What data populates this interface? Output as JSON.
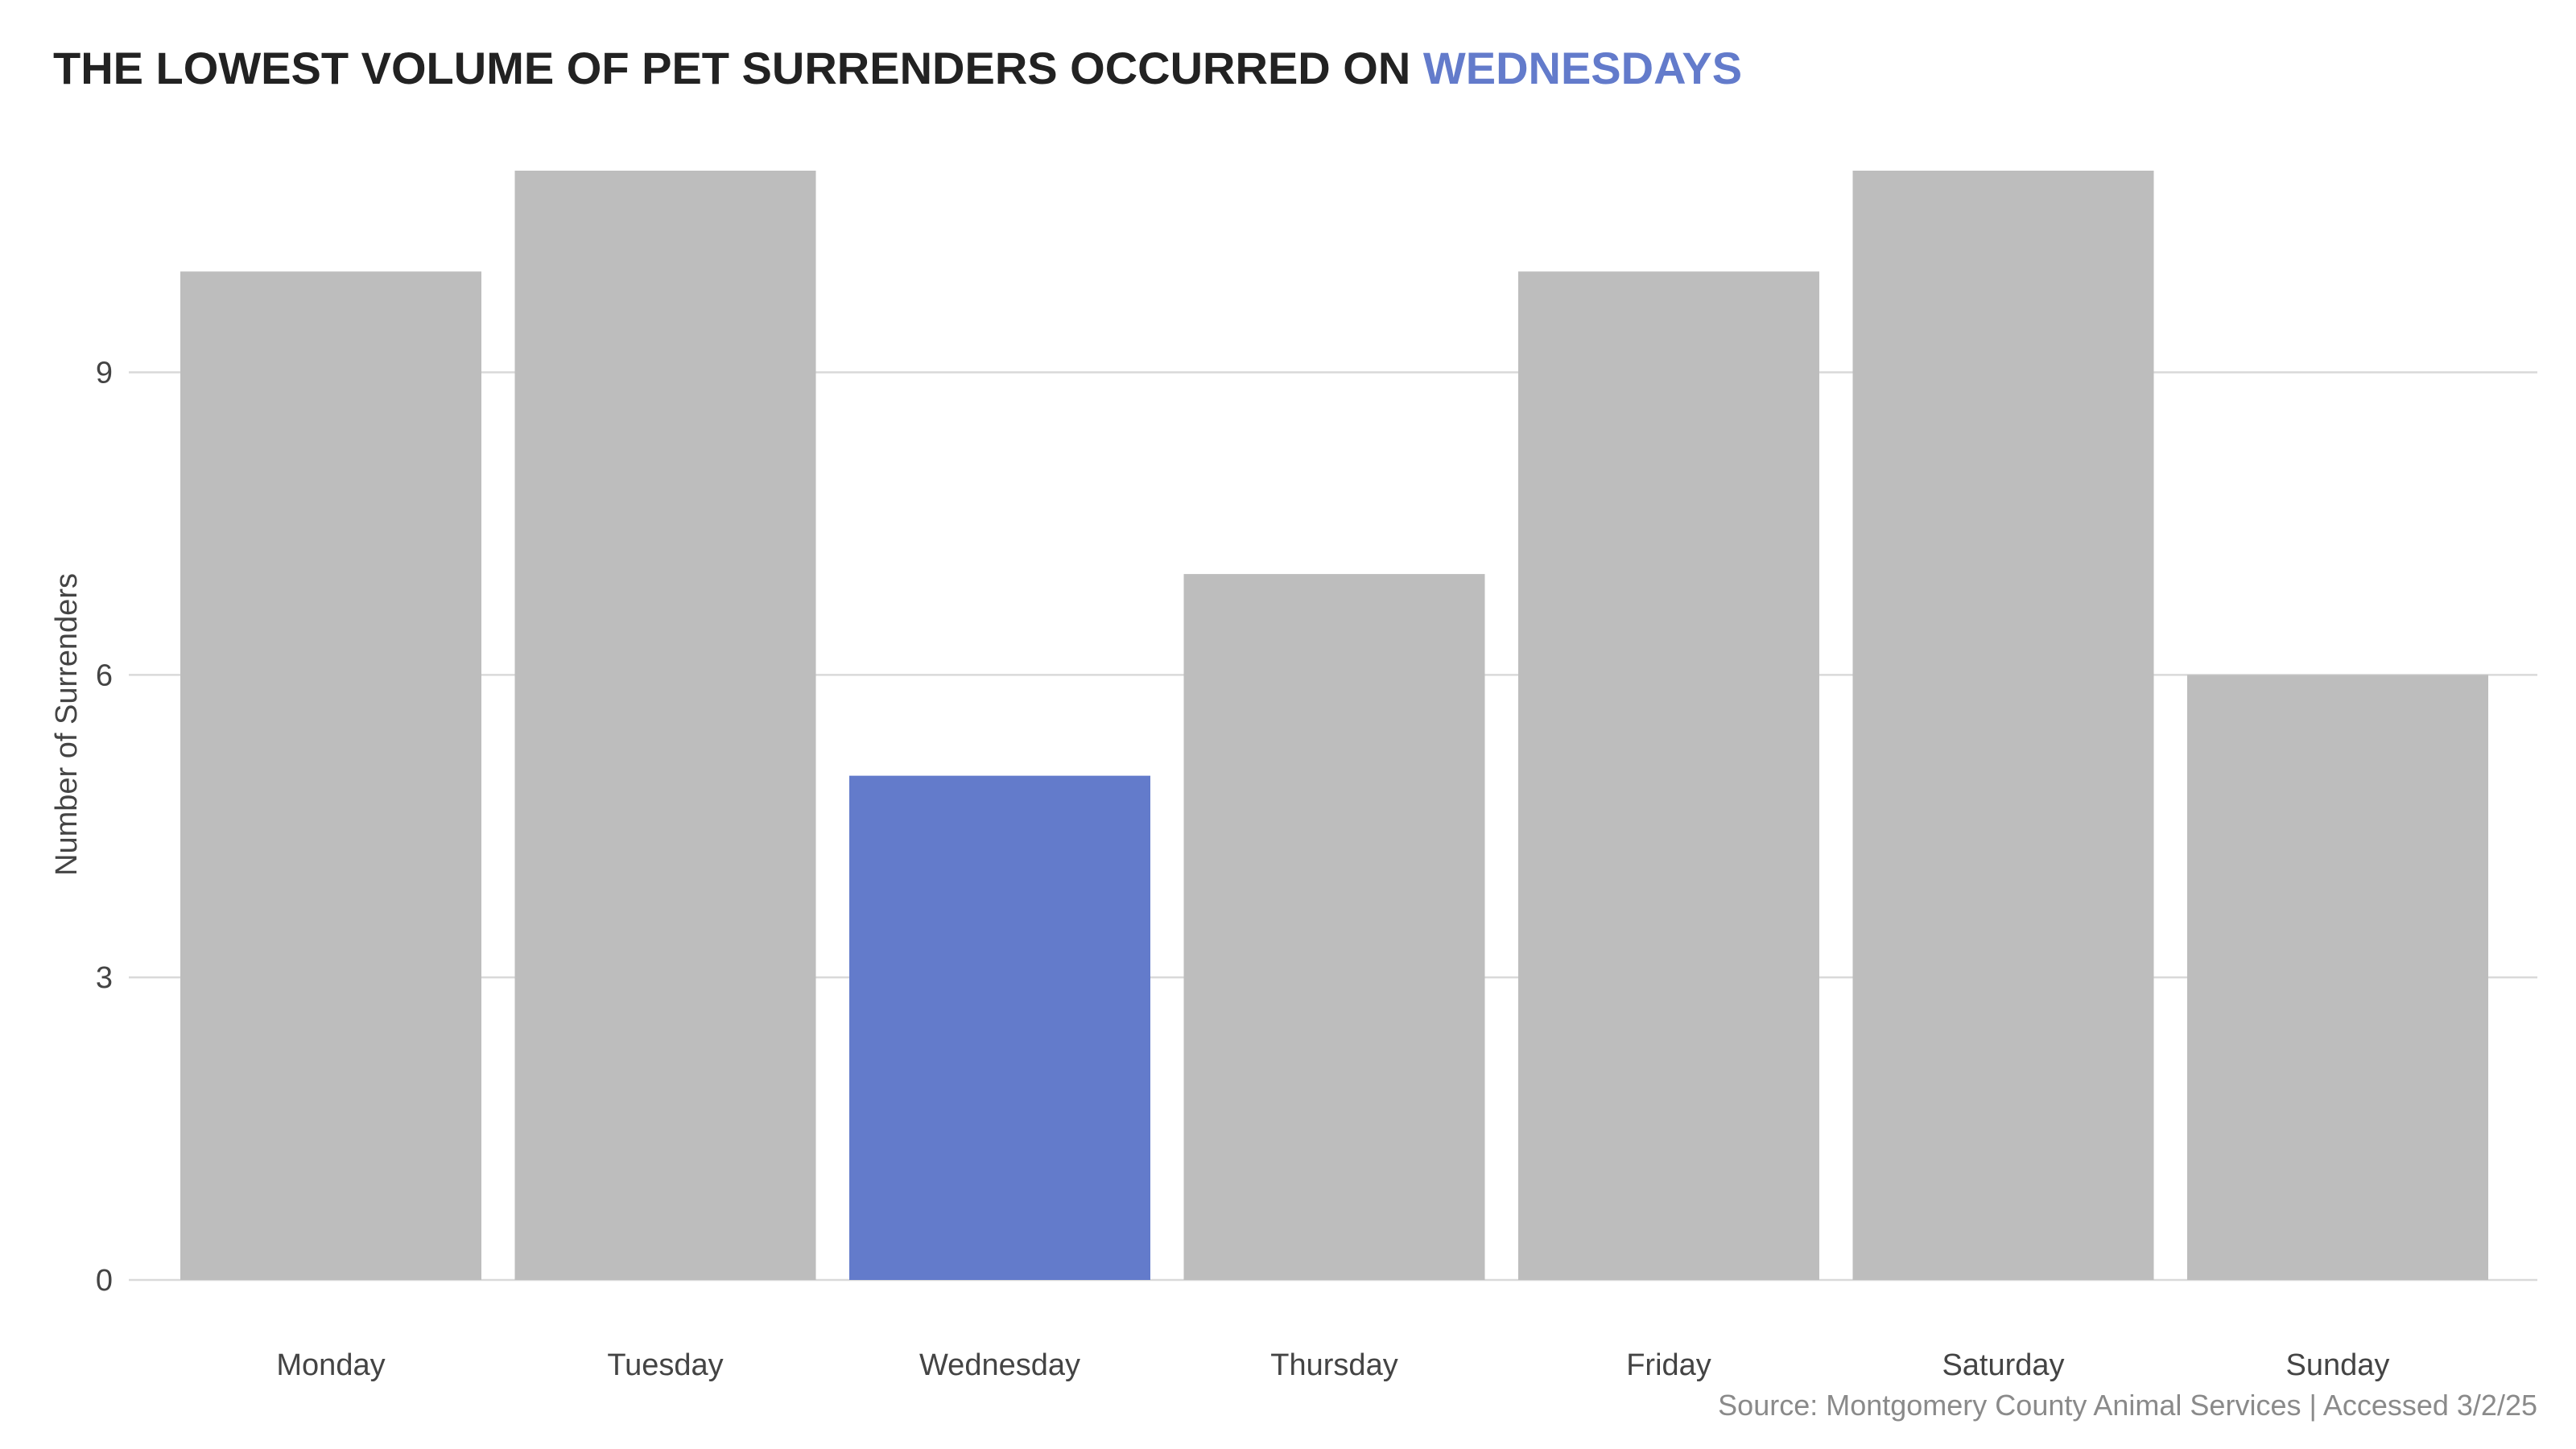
{
  "chart_data": {
    "type": "bar",
    "title_prefix": "THE LOWEST VOLUME OF PET SURRENDERS OCCURRED ON ",
    "title_highlight": "WEDNESDAYS",
    "categories": [
      "Monday",
      "Tuesday",
      "Wednesday",
      "Thursday",
      "Friday",
      "Saturday",
      "Sunday"
    ],
    "values": [
      10,
      11,
      5,
      7,
      10,
      11,
      6
    ],
    "highlight_category": "Wednesday",
    "xlabel": "",
    "ylabel": "Number of Surrenders",
    "ylim": [
      0,
      11
    ],
    "yticks": [
      0,
      3,
      6,
      9
    ],
    "grid": true,
    "legend": "none",
    "source": "Source: Montgomery County Animal Services | Accessed 3/2/25",
    "colors": {
      "bar": "#bdbdbd",
      "highlight": "#637bcb",
      "title": "#222222",
      "grid": "#d9d9d9"
    }
  }
}
